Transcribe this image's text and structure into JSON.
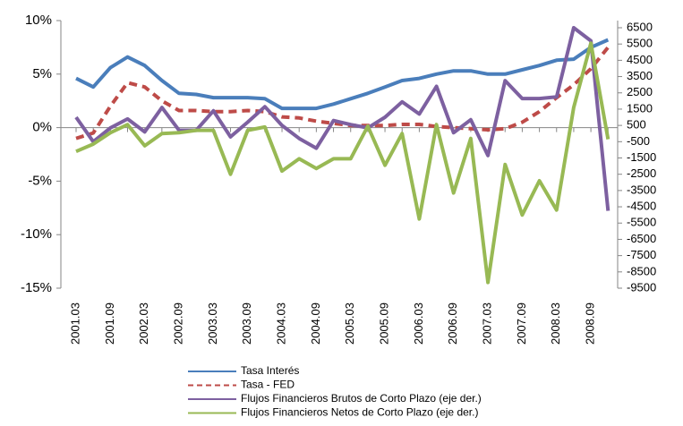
{
  "chart_data": {
    "type": "line",
    "categories": [
      "2001.03",
      null,
      "2001.09",
      null,
      "2002.03",
      null,
      "2002.09",
      null,
      "2003.03",
      null,
      "2003.09",
      null,
      "2004.03",
      null,
      "2004.09",
      null,
      "2005.03",
      null,
      "2005.09",
      null,
      "2006.03",
      null,
      "2006.09",
      null,
      "2007.03",
      null,
      "2007.09",
      null,
      "2008.03",
      null,
      "2008.09",
      null
    ],
    "ylim": [
      -15,
      10
    ],
    "yticks": [
      {
        "value": 10,
        "label": "10%"
      },
      {
        "value": 5,
        "label": "5%"
      },
      {
        "value": 0,
        "label": "0%"
      },
      {
        "value": -5,
        "label": "-5%"
      },
      {
        "value": -10,
        "label": "-10%"
      },
      {
        "value": -15,
        "label": "-15%"
      }
    ],
    "y2lim": [
      -9500,
      6940
    ],
    "y2ticks": [
      6500,
      5500,
      4500,
      3500,
      2500,
      1500,
      500,
      -500,
      -1500,
      -2500,
      -3500,
      -4500,
      -5500,
      -6500,
      -7500,
      -8500,
      -9500
    ],
    "series": [
      {
        "name": "Tasa Interés",
        "color": "#4a7ebb",
        "dash": false,
        "values": [
          4.6,
          3.8,
          5.6,
          6.6,
          5.8,
          4.4,
          3.2,
          3.1,
          2.8,
          2.8,
          2.8,
          2.7,
          1.8,
          1.8,
          1.8,
          2.2,
          2.7,
          3.2,
          3.8,
          4.4,
          4.6,
          5.0,
          5.3,
          5.3,
          5.0,
          5.0,
          5.4,
          5.8,
          6.3,
          6.4,
          7.5,
          8.2
        ]
      },
      {
        "name": "Tasa - FED",
        "color": "#be4b48",
        "dash": true,
        "values": [
          -1.0,
          -0.5,
          2.0,
          4.2,
          3.8,
          2.5,
          1.6,
          1.6,
          1.5,
          1.5,
          1.6,
          1.5,
          1.0,
          0.9,
          0.6,
          0.4,
          0.2,
          0.2,
          0.2,
          0.3,
          0.3,
          0.1,
          0.0,
          -0.1,
          -0.2,
          -0.1,
          0.5,
          1.5,
          2.8,
          4.0,
          5.5,
          7.5
        ]
      },
      {
        "name": "Flujos Financieros Brutos de Corto Plazo (eje der.)",
        "color": "#7d60a0",
        "dash": false,
        "axis": "y2",
        "values": [
          1000,
          -500,
          350,
          900,
          100,
          1600,
          200,
          200,
          1400,
          -200,
          700,
          1650,
          500,
          -300,
          -900,
          800,
          550,
          350,
          1000,
          1950,
          1200,
          2900,
          50,
          850,
          -1350,
          3250,
          2150,
          2150,
          2250,
          6500,
          5700,
          -4750
        ]
      },
      {
        "name": "Flujos Financieros Netos de Corto Plazo (eje der.)",
        "color": "#98b954",
        "dash": false,
        "axis": "y2",
        "values": [
          -1100,
          -650,
          50,
          550,
          -750,
          0,
          50,
          200,
          200,
          -2500,
          200,
          400,
          -2300,
          -1550,
          -2150,
          -1550,
          -1550,
          450,
          -1950,
          0,
          -5250,
          550,
          -3650,
          -300,
          -9150,
          -1900,
          -5000,
          -2900,
          -4700,
          1600,
          5550,
          -350
        ]
      }
    ]
  }
}
